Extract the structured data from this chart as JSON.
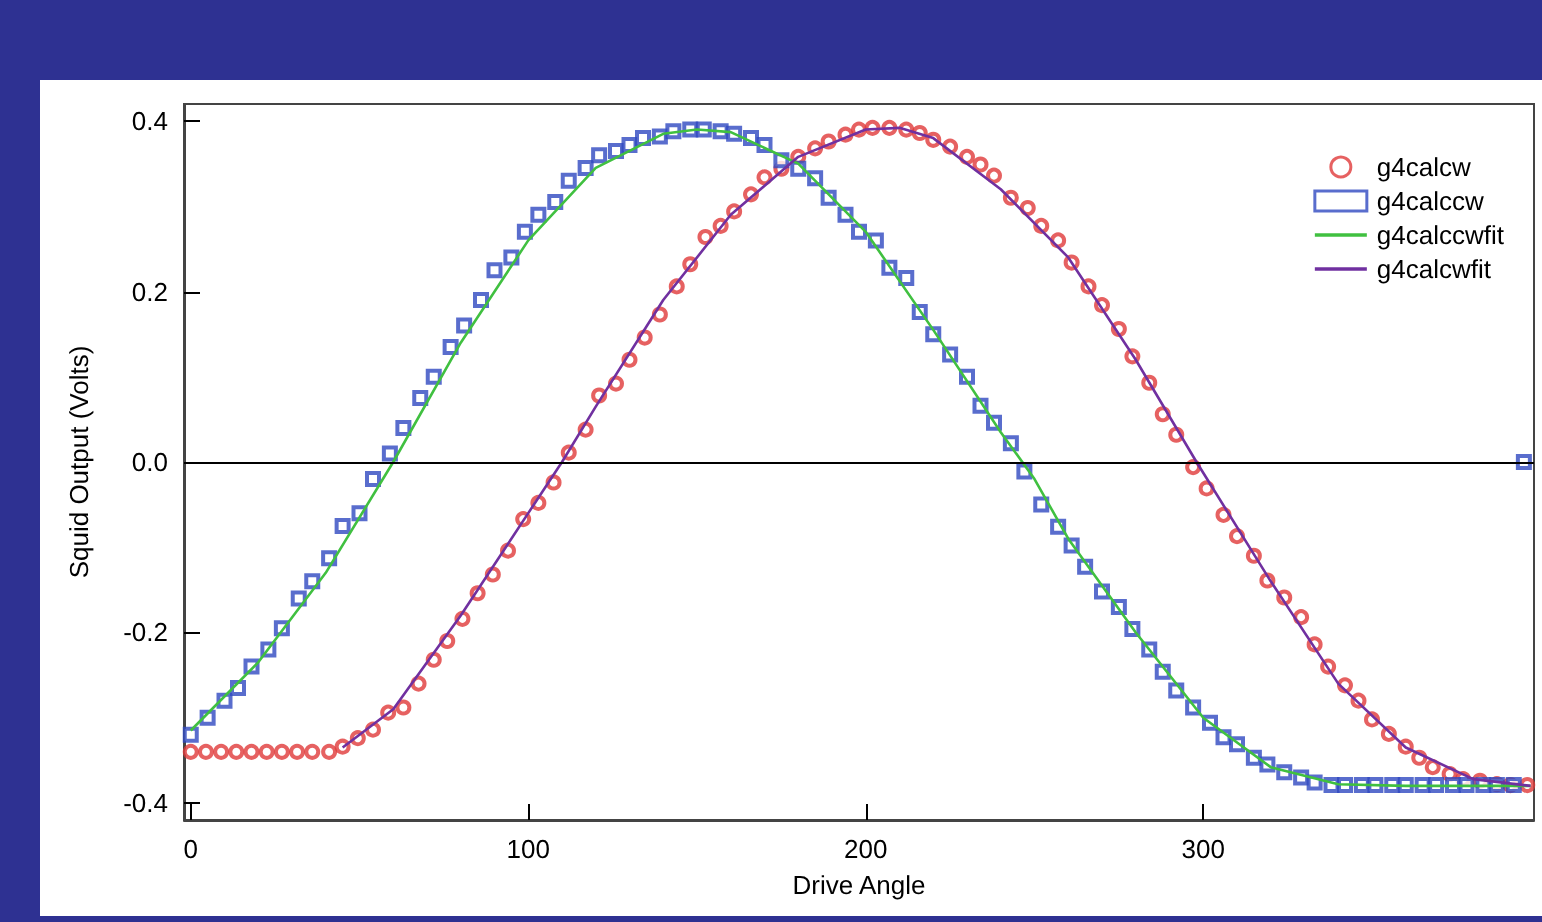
{
  "chart_data": {
    "type": "scatter",
    "xlabel": "Drive Angle",
    "ylabel": "Squid Output (Volts)",
    "xlim": [
      -2,
      398
    ],
    "ylim": [
      -0.42,
      0.42
    ],
    "xticks": [
      0,
      100,
      200,
      300
    ],
    "yticks": [
      {
        "value": -0.4,
        "label": "-0.4"
      },
      {
        "value": -0.2,
        "label": "-0.2"
      },
      {
        "value": 0,
        "label": "0.0"
      },
      {
        "value": 0.2,
        "label": "0.2"
      },
      {
        "value": 0.4,
        "label": "0.4"
      }
    ],
    "grid": false,
    "legend": "top right",
    "ref_lines": [
      {
        "axis": "y",
        "value": 0,
        "color": "#000000"
      }
    ],
    "series": [
      {
        "name": "g4calcw",
        "marker": "circle",
        "color": "#e03a3a",
        "x": [
          0,
          4.5,
          9,
          13.5,
          18,
          22.5,
          27,
          31.5,
          36,
          41,
          45,
          49.5,
          54,
          58.5,
          63,
          67.5,
          72,
          76,
          80.5,
          85,
          89.5,
          94,
          98.5,
          103,
          107.5,
          112,
          117,
          121,
          126,
          130,
          134.5,
          139,
          144,
          148,
          152.5,
          157,
          161,
          166,
          170,
          175,
          180,
          185,
          189,
          194,
          198,
          202,
          207,
          212,
          216,
          220,
          225,
          230,
          234,
          238,
          243,
          248,
          252,
          257,
          261,
          266,
          270,
          275,
          279,
          284,
          288,
          292,
          297,
          301,
          306,
          310,
          315,
          319,
          324,
          329,
          333,
          337,
          342,
          346,
          350,
          355,
          360,
          364,
          368,
          373,
          377,
          382,
          387,
          391,
          396
        ],
        "values": [
          -0.34,
          -0.34,
          -0.34,
          -0.34,
          -0.34,
          -0.34,
          -0.34,
          -0.34,
          -0.34,
          -0.34,
          -0.334,
          -0.324,
          -0.314,
          -0.294,
          -0.288,
          -0.26,
          -0.232,
          -0.21,
          -0.184,
          -0.154,
          -0.132,
          -0.104,
          -0.067,
          -0.048,
          -0.024,
          0.011,
          0.038,
          0.078,
          0.092,
          0.12,
          0.146,
          0.173,
          0.206,
          0.232,
          0.264,
          0.277,
          0.294,
          0.314,
          0.334,
          0.344,
          0.358,
          0.368,
          0.376,
          0.384,
          0.39,
          0.392,
          0.392,
          0.39,
          0.386,
          0.378,
          0.37,
          0.358,
          0.349,
          0.336,
          0.31,
          0.298,
          0.277,
          0.26,
          0.234,
          0.206,
          0.184,
          0.156,
          0.124,
          0.093,
          0.056,
          0.032,
          -0.006,
          -0.031,
          -0.062,
          -0.087,
          -0.11,
          -0.139,
          -0.159,
          -0.182,
          -0.214,
          -0.24,
          -0.262,
          -0.28,
          -0.302,
          -0.319,
          -0.334,
          -0.347,
          -0.358,
          -0.366,
          -0.372,
          -0.374,
          -0.378,
          -0.379,
          -0.379
        ]
      },
      {
        "name": "g4calccw",
        "marker": "square",
        "color": "#3048c0",
        "x": [
          0,
          5,
          10,
          14,
          18,
          23,
          27,
          32,
          36,
          41,
          45,
          50,
          54,
          59,
          63,
          68,
          72,
          77,
          81,
          86,
          90,
          95,
          99,
          103,
          108,
          112,
          117,
          121,
          126,
          130,
          134,
          139,
          143,
          148,
          152,
          157,
          161,
          166,
          170,
          175,
          180,
          185,
          189,
          194,
          198,
          203,
          207,
          212,
          216,
          220,
          225,
          230,
          234,
          238,
          243,
          247,
          252,
          257,
          261,
          265,
          270,
          275,
          279,
          284,
          288,
          292,
          297,
          302,
          306,
          310,
          315,
          319,
          324,
          329,
          333,
          338,
          342,
          347,
          351,
          356,
          360,
          365,
          369,
          374,
          378,
          383,
          387,
          392,
          395
        ],
        "values": [
          -0.32,
          -0.3,
          -0.28,
          -0.265,
          -0.24,
          -0.22,
          -0.195,
          -0.16,
          -0.14,
          -0.113,
          -0.075,
          -0.06,
          -0.02,
          0.01,
          0.04,
          0.075,
          0.1,
          0.135,
          0.16,
          0.19,
          0.225,
          0.24,
          0.27,
          0.29,
          0.305,
          0.33,
          0.345,
          0.36,
          0.365,
          0.372,
          0.38,
          0.382,
          0.388,
          0.39,
          0.39,
          0.388,
          0.385,
          0.38,
          0.372,
          0.354,
          0.344,
          0.333,
          0.31,
          0.29,
          0.27,
          0.26,
          0.228,
          0.216,
          0.176,
          0.15,
          0.126,
          0.1,
          0.066,
          0.046,
          0.022,
          -0.011,
          -0.05,
          -0.076,
          -0.098,
          -0.123,
          -0.152,
          -0.17,
          -0.196,
          -0.22,
          -0.246,
          -0.268,
          -0.288,
          -0.306,
          -0.323,
          -0.331,
          -0.347,
          -0.355,
          -0.364,
          -0.37,
          -0.376,
          -0.379,
          -0.379,
          -0.379,
          -0.379,
          -0.379,
          -0.379,
          -0.379,
          -0.379,
          -0.379,
          -0.379,
          -0.379,
          -0.379,
          -0.379,
          0
        ]
      },
      {
        "name": "g4calccwfit",
        "type": "line",
        "marker": "none",
        "color": "#40c040",
        "x": [
          0,
          20,
          40,
          60,
          80,
          100,
          120,
          140,
          150,
          160,
          180,
          200,
          220,
          240,
          250,
          260,
          280,
          300,
          320,
          340,
          360,
          397
        ],
        "values": [
          -0.315,
          -0.235,
          -0.13,
          0,
          0.14,
          0.26,
          0.345,
          0.385,
          0.39,
          0.387,
          0.35,
          0.27,
          0.155,
          0.035,
          -0.02,
          -0.09,
          -0.2,
          -0.3,
          -0.358,
          -0.378,
          -0.38,
          -0.38
        ]
      },
      {
        "name": "g4calcwfit",
        "type": "line",
        "marker": "none",
        "color": "#7030a0",
        "x": [
          45,
          60,
          80,
          100,
          110,
          120,
          140,
          160,
          180,
          200,
          210,
          220,
          240,
          260,
          280,
          298,
          320,
          340,
          360,
          380,
          397
        ],
        "values": [
          -0.335,
          -0.29,
          -0.18,
          -0.06,
          0,
          0.065,
          0.19,
          0.29,
          0.358,
          0.39,
          0.392,
          0.38,
          0.32,
          0.24,
          0.12,
          0,
          -0.14,
          -0.26,
          -0.335,
          -0.372,
          -0.38
        ]
      }
    ]
  }
}
